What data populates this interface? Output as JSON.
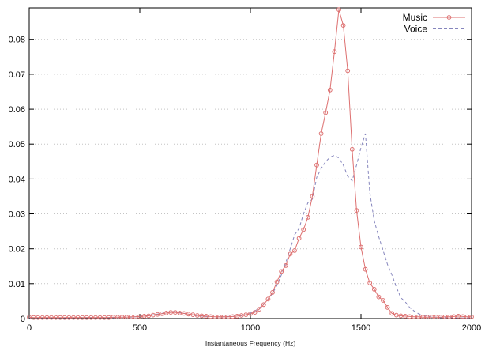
{
  "figure": {
    "background_color": "#ffffff",
    "axis_color": "#000000",
    "grid_color": "#c4c4c4"
  },
  "legend": {
    "position": "top-right-inside",
    "entries": [
      {
        "label": "Music",
        "color": "#dd7070",
        "line_style": "solid",
        "marker": "open-circle"
      },
      {
        "label": "Voice",
        "color": "#8585bd",
        "line_style": "dashed",
        "marker": "none"
      }
    ]
  },
  "chart_data": {
    "type": "line",
    "title": "",
    "xlabel": "Instantaneous Frequency (Hz)",
    "ylabel": "",
    "xlim": [
      0,
      2000
    ],
    "ylim": [
      0,
      0.089
    ],
    "xticks": [
      0,
      500,
      1000,
      1500,
      2000
    ],
    "yticks": [
      0,
      0.01,
      0.02,
      0.03,
      0.04,
      0.05,
      0.06,
      0.07,
      0.08
    ],
    "grid": "horizontal-dotted-only",
    "legend_position": "top-right-inside",
    "x": [
      0,
      20,
      40,
      60,
      80,
      100,
      120,
      140,
      160,
      180,
      200,
      220,
      240,
      260,
      280,
      300,
      320,
      340,
      360,
      380,
      400,
      420,
      440,
      460,
      480,
      500,
      520,
      540,
      560,
      580,
      600,
      620,
      640,
      660,
      680,
      700,
      720,
      740,
      760,
      780,
      800,
      820,
      840,
      860,
      880,
      900,
      920,
      940,
      960,
      980,
      1000,
      1020,
      1040,
      1060,
      1080,
      1100,
      1120,
      1140,
      1160,
      1180,
      1200,
      1220,
      1240,
      1260,
      1280,
      1300,
      1320,
      1340,
      1360,
      1380,
      1400,
      1420,
      1440,
      1460,
      1480,
      1500,
      1520,
      1540,
      1560,
      1580,
      1600,
      1620,
      1640,
      1660,
      1680,
      1700,
      1720,
      1740,
      1760,
      1780,
      1800,
      1820,
      1840,
      1860,
      1880,
      1900,
      1920,
      1940,
      1960,
      1980,
      2000
    ],
    "series": [
      {
        "name": "Music",
        "color": "#dd7070",
        "line": "solid",
        "marker": "circle",
        "values": [
          0.0004,
          0.0003,
          0.0003,
          0.0003,
          0.0003,
          0.0003,
          0.0003,
          0.0003,
          0.0003,
          0.0003,
          0.0003,
          0.0003,
          0.0003,
          0.0003,
          0.0003,
          0.0003,
          0.0003,
          0.0003,
          0.0003,
          0.0004,
          0.0004,
          0.0004,
          0.0004,
          0.0005,
          0.0005,
          0.0006,
          0.0007,
          0.0008,
          0.001,
          0.0012,
          0.0014,
          0.0016,
          0.0018,
          0.0018,
          0.0016,
          0.0015,
          0.0013,
          0.0011,
          0.0009,
          0.0008,
          0.0007,
          0.0006,
          0.0005,
          0.0005,
          0.0005,
          0.0005,
          0.0006,
          0.0007,
          0.0009,
          0.0011,
          0.0014,
          0.0018,
          0.0027,
          0.004,
          0.0056,
          0.0075,
          0.0105,
          0.0135,
          0.0152,
          0.0185,
          0.0195,
          0.023,
          0.0255,
          0.029,
          0.035,
          0.044,
          0.053,
          0.059,
          0.0655,
          0.0765,
          0.0885,
          0.084,
          0.071,
          0.0485,
          0.031,
          0.0205,
          0.0141,
          0.0102,
          0.0084,
          0.0062,
          0.0052,
          0.0032,
          0.0015,
          0.001,
          0.0008,
          0.0007,
          0.0006,
          0.0005,
          0.0005,
          0.0004,
          0.0004,
          0.0004,
          0.0004,
          0.0004,
          0.0005,
          0.0005,
          0.0006,
          0.0007,
          0.0006,
          0.0005,
          0.0005
        ]
      },
      {
        "name": "Voice",
        "color": "#8585bd",
        "line": "dashed",
        "marker": "none",
        "values": [
          0.0003,
          0.0002,
          0.0002,
          0.0002,
          0.0002,
          0.0002,
          0.0002,
          0.0002,
          0.0002,
          0.0002,
          0.0002,
          0.0003,
          0.0003,
          0.0003,
          0.0003,
          0.0003,
          0.0003,
          0.0003,
          0.0003,
          0.0003,
          0.0003,
          0.0004,
          0.0004,
          0.0004,
          0.0005,
          0.0006,
          0.0007,
          0.0009,
          0.0011,
          0.0013,
          0.0015,
          0.0017,
          0.002,
          0.002,
          0.0018,
          0.0015,
          0.0012,
          0.001,
          0.0008,
          0.0007,
          0.0006,
          0.0006,
          0.0005,
          0.0005,
          0.0005,
          0.0006,
          0.0006,
          0.0007,
          0.0008,
          0.0011,
          0.0016,
          0.0022,
          0.003,
          0.0042,
          0.0056,
          0.0072,
          0.0095,
          0.0125,
          0.016,
          0.02,
          0.024,
          0.0258,
          0.03,
          0.0332,
          0.0342,
          0.0405,
          0.043,
          0.045,
          0.0462,
          0.0468,
          0.046,
          0.044,
          0.0408,
          0.0395,
          0.044,
          0.049,
          0.053,
          0.036,
          0.028,
          0.0235,
          0.0195,
          0.0155,
          0.0125,
          0.009,
          0.006,
          0.0048,
          0.0032,
          0.0022,
          0.0014,
          0.001,
          0.0007,
          0.0005,
          0.0004,
          0.0003,
          0.0003,
          0.0003,
          0.0002,
          0.0002,
          0.0002,
          0.0002,
          0.0002
        ]
      }
    ]
  }
}
